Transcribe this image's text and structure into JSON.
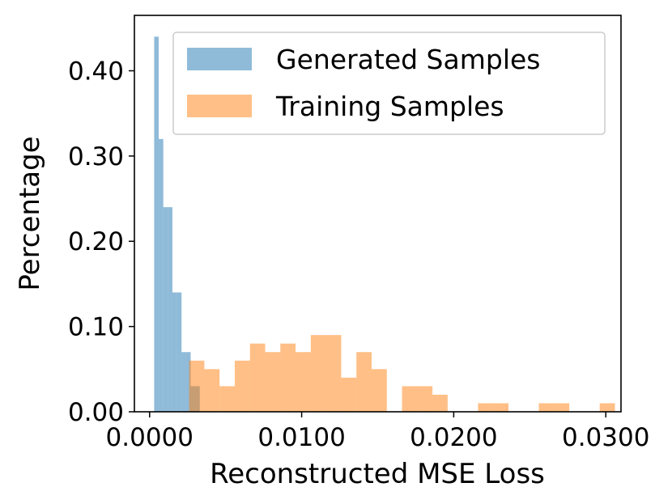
{
  "chart_data": {
    "type": "bar",
    "title": "",
    "xlabel": "Reconstructed MSE Loss",
    "ylabel": "Percentage",
    "xlim": [
      -0.001,
      0.031
    ],
    "ylim": [
      0.0,
      0.465
    ],
    "xticks": [
      0.0,
      0.01,
      0.02,
      0.03
    ],
    "xtick_labels": [
      "0.0000",
      "0.0100",
      "0.0200",
      "0.0300"
    ],
    "yticks": [
      0.0,
      0.1,
      0.2,
      0.3,
      0.4
    ],
    "ytick_labels": [
      "0.00",
      "0.10",
      "0.20",
      "0.30",
      "0.40"
    ],
    "grid": false,
    "legend_position": "top-right",
    "series": [
      {
        "name": "Generated Samples",
        "color": "#1f77b4",
        "opacity": 0.5,
        "bins": [
          {
            "x0": 0.0003,
            "x1": 0.0006,
            "value": 0.44
          },
          {
            "x0": 0.0006,
            "x1": 0.0009,
            "value": 0.32
          },
          {
            "x0": 0.0009,
            "x1": 0.0012,
            "value": 0.24
          },
          {
            "x0": 0.0012,
            "x1": 0.0015,
            "value": 0.24
          },
          {
            "x0": 0.0015,
            "x1": 0.0018,
            "value": 0.14
          },
          {
            "x0": 0.0018,
            "x1": 0.0021,
            "value": 0.14
          },
          {
            "x0": 0.0021,
            "x1": 0.0024,
            "value": 0.07
          },
          {
            "x0": 0.0024,
            "x1": 0.0027,
            "value": 0.07
          },
          {
            "x0": 0.0027,
            "x1": 0.003,
            "value": 0.03
          },
          {
            "x0": 0.003,
            "x1": 0.0033,
            "value": 0.03
          }
        ]
      },
      {
        "name": "Training Samples",
        "color": "#ff7f0e",
        "opacity": 0.5,
        "bins": [
          {
            "x0": 0.0026,
            "x1": 0.0036,
            "value": 0.06
          },
          {
            "x0": 0.0036,
            "x1": 0.0046,
            "value": 0.05
          },
          {
            "x0": 0.0046,
            "x1": 0.0056,
            "value": 0.03
          },
          {
            "x0": 0.0056,
            "x1": 0.0066,
            "value": 0.06
          },
          {
            "x0": 0.0066,
            "x1": 0.0076,
            "value": 0.08
          },
          {
            "x0": 0.0076,
            "x1": 0.0086,
            "value": 0.07
          },
          {
            "x0": 0.0086,
            "x1": 0.0096,
            "value": 0.08
          },
          {
            "x0": 0.0096,
            "x1": 0.0106,
            "value": 0.07
          },
          {
            "x0": 0.0106,
            "x1": 0.0116,
            "value": 0.09
          },
          {
            "x0": 0.0116,
            "x1": 0.0126,
            "value": 0.09
          },
          {
            "x0": 0.0126,
            "x1": 0.0136,
            "value": 0.04
          },
          {
            "x0": 0.0136,
            "x1": 0.0146,
            "value": 0.07
          },
          {
            "x0": 0.0146,
            "x1": 0.0156,
            "value": 0.05
          },
          {
            "x0": 0.0166,
            "x1": 0.0176,
            "value": 0.03
          },
          {
            "x0": 0.0176,
            "x1": 0.0186,
            "value": 0.03
          },
          {
            "x0": 0.0186,
            "x1": 0.0196,
            "value": 0.02
          },
          {
            "x0": 0.0216,
            "x1": 0.0226,
            "value": 0.01
          },
          {
            "x0": 0.0226,
            "x1": 0.0236,
            "value": 0.01
          },
          {
            "x0": 0.0256,
            "x1": 0.0266,
            "value": 0.01
          },
          {
            "x0": 0.0266,
            "x1": 0.0276,
            "value": 0.01
          },
          {
            "x0": 0.0296,
            "x1": 0.0306,
            "value": 0.01
          }
        ]
      }
    ]
  }
}
